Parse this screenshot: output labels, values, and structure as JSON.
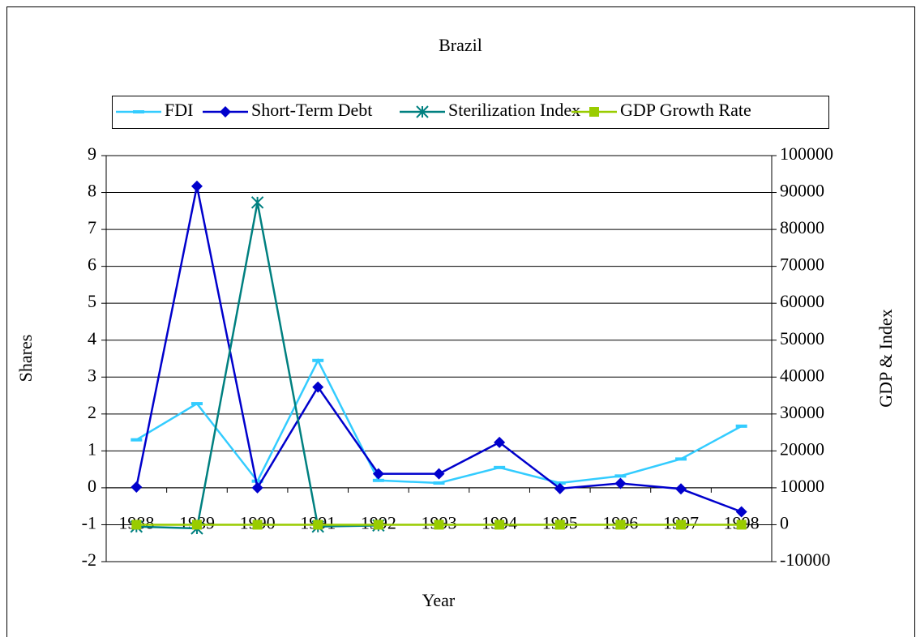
{
  "chart_data": {
    "type": "line",
    "title": "Brazil",
    "x_label": "Year",
    "y_label": "Shares",
    "y2_label": "GDP & Index",
    "categories": [
      "1988",
      "1989",
      "1990",
      "1991",
      "1992",
      "1993",
      "1994",
      "1995",
      "1996",
      "1997",
      "1998"
    ],
    "series": [
      {
        "name": "FDI",
        "color": "#33ccff",
        "marker": "dash",
        "values": [
          1.3,
          2.28,
          0.18,
          3.45,
          0.2,
          0.13,
          0.55,
          0.13,
          0.32,
          0.78,
          1.67
        ]
      },
      {
        "name": "Short-Term Debt",
        "color": "#0000cc",
        "marker": "diamond",
        "values": [
          0.02,
          8.17,
          0.0,
          2.73,
          0.38,
          0.38,
          1.23,
          -0.02,
          0.12,
          -0.03,
          -0.65
        ]
      },
      {
        "name": "Sterilization Index",
        "color": "#008080",
        "marker": "asterisk",
        "values": [
          -1.05,
          -1.1,
          7.73,
          -1.05,
          -1.02,
          null,
          null,
          null,
          null,
          null,
          null
        ]
      },
      {
        "name": "GDP Growth Rate",
        "color": "#99cc00",
        "marker": "square",
        "axis": "y2",
        "values": [
          0,
          0,
          0,
          0,
          0,
          0,
          0,
          0,
          0,
          0,
          0
        ]
      }
    ],
    "ylim": [
      -2,
      9
    ],
    "yticks": [
      -2,
      -1,
      0,
      1,
      2,
      3,
      4,
      5,
      6,
      7,
      8,
      9
    ],
    "y2lim": [
      -10000,
      100000
    ],
    "y2ticks": [
      -10000,
      0,
      10000,
      20000,
      30000,
      40000,
      50000,
      60000,
      70000,
      80000,
      90000,
      100000
    ],
    "grid": true,
    "legend": "top"
  }
}
